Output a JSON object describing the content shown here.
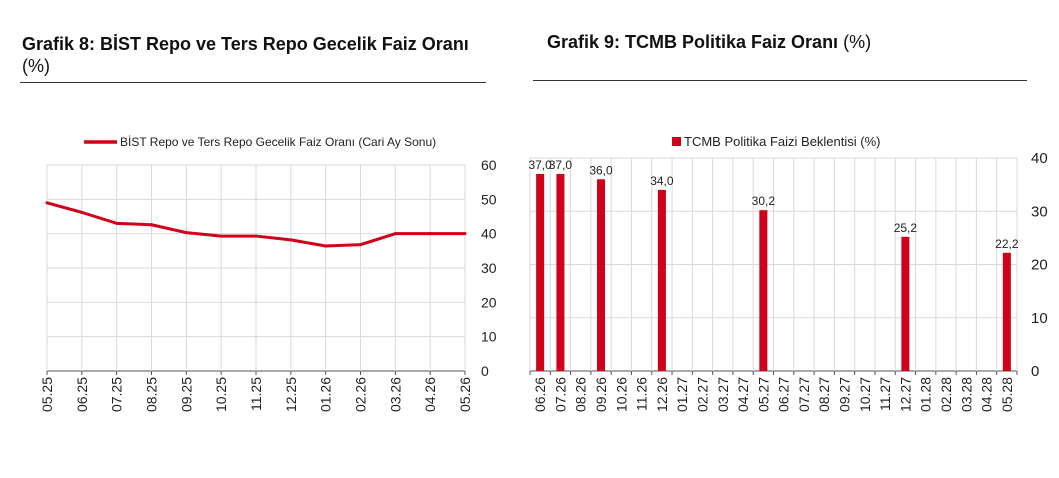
{
  "chart_data": [
    {
      "type": "line",
      "title": "Grafik 8:  BİST Repo ve Ters Repo Gecelik Faiz Oranı",
      "title_unit": "(%)",
      "legend_position": "top-center",
      "categories": [
        "05.25",
        "06.25",
        "07.25",
        "08.25",
        "09.25",
        "10.25",
        "11.25",
        "12.25",
        "01.26",
        "02.26",
        "03.26",
        "04.26",
        "05.26"
      ],
      "series": [
        {
          "name": "BİST Repo ve Ters Repo Gecelik Faiz Oranı (Cari Ay Sonu)",
          "values": [
            49.0,
            46.2,
            43.0,
            42.6,
            40.3,
            39.3,
            39.3,
            38.2,
            36.4,
            36.8,
            40.0,
            40.0,
            40.0
          ],
          "color": "#d0021b"
        }
      ],
      "ylim": [
        0,
        60
      ],
      "yticks": [
        "0",
        "10",
        "20",
        "30",
        "40",
        "50",
        "60"
      ],
      "y_axis_side": "right",
      "grid": true
    },
    {
      "type": "bar",
      "title": "Grafik 9: TCMB Politika Faiz Oranı",
      "title_unit": "(%)",
      "legend_position": "top-center",
      "categories": [
        "06.26",
        "07.26",
        "08.26",
        "09.26",
        "10.26",
        "11.26",
        "12.26",
        "01.27",
        "02.27",
        "03.27",
        "04.27",
        "05.27",
        "06.27",
        "07.27",
        "08.27",
        "09.27",
        "10.27",
        "11.27",
        "12.27",
        "01.28",
        "02.28",
        "03.28",
        "04.28",
        "05.28"
      ],
      "series": [
        {
          "name": "TCMB Politika Faizi Beklentisi (%)",
          "values": [
            37.0,
            37.0,
            null,
            36.0,
            null,
            null,
            34.0,
            null,
            null,
            null,
            null,
            30.2,
            null,
            null,
            null,
            null,
            null,
            null,
            25.2,
            null,
            null,
            null,
            null,
            22.2
          ],
          "color": "#d0021b"
        }
      ],
      "labels": [
        "37,0",
        "37,0",
        "",
        "36,0",
        "",
        "",
        "34,0",
        "",
        "",
        "",
        "",
        "30,2",
        "",
        "",
        "",
        "",
        "",
        "",
        "25,2",
        "",
        "",
        "",
        "",
        "22,2"
      ],
      "ylim": [
        0,
        40
      ],
      "yticks": [
        "0",
        "10",
        "20",
        "30",
        "40"
      ],
      "y_axis_side": "right",
      "grid": true
    }
  ]
}
